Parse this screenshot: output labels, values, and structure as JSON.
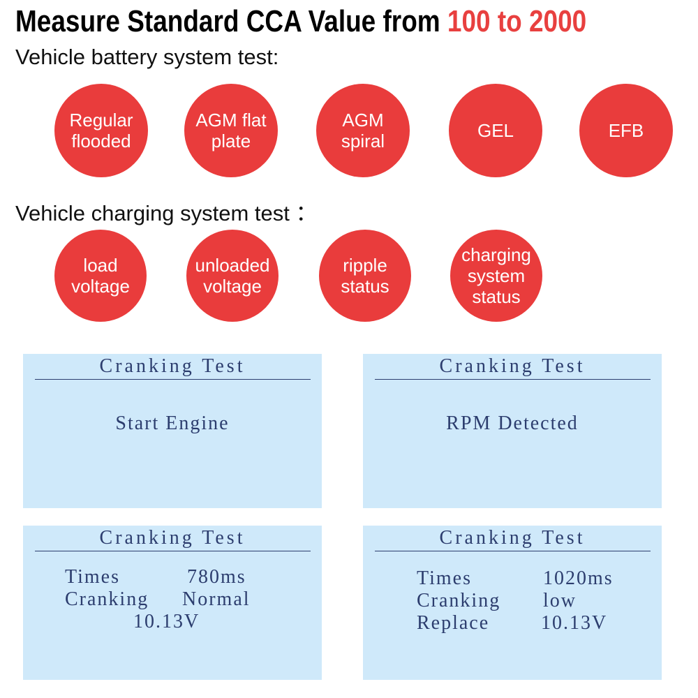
{
  "header": {
    "title_prefix": "Measure Standard CCA Value from",
    "title_highlight": "100 to 2000"
  },
  "battery_section": {
    "heading": "Vehicle battery system test:",
    "items": [
      [
        "Regular",
        "flooded"
      ],
      [
        "AGM flat",
        "plate"
      ],
      [
        "AGM",
        "spiral"
      ],
      [
        "GEL"
      ],
      [
        "EFB"
      ]
    ]
  },
  "charging_section": {
    "heading": "Vehicle charging system test ：",
    "items": [
      [
        "load",
        "voltage"
      ],
      [
        "unloaded",
        "voltage"
      ],
      [
        "ripple",
        "status"
      ],
      [
        "charging",
        "system",
        "status"
      ]
    ]
  },
  "screens": [
    {
      "title": "Cranking Test",
      "message": "Start Engine"
    },
    {
      "title": "Cranking Test",
      "message": "RPM Detected"
    },
    {
      "title": "Cranking Test",
      "rows": [
        [
          "Times",
          "780ms"
        ],
        [
          "Cranking",
          "Normal"
        ],
        [
          "10.13V"
        ]
      ]
    },
    {
      "title": "Cranking Test",
      "rows": [
        [
          "Times",
          "1020ms"
        ],
        [
          "Cranking",
          "low"
        ],
        [
          "Replace",
          "10.13V"
        ]
      ]
    }
  ]
}
